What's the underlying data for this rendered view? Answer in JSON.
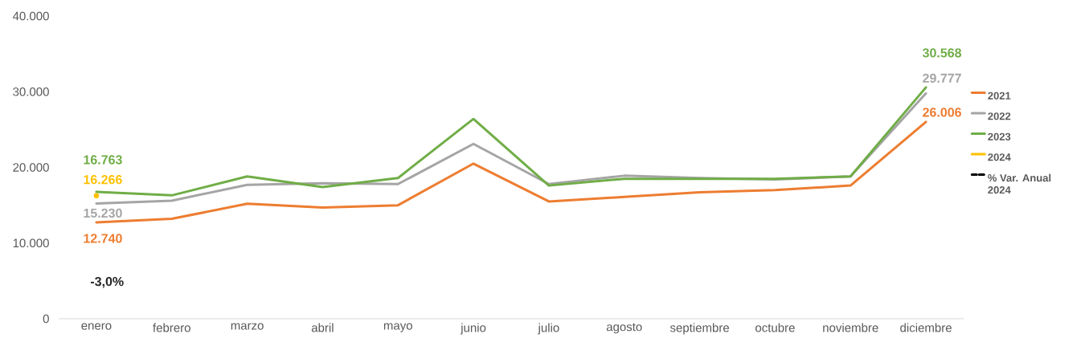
{
  "chart_data": {
    "type": "line",
    "categories": [
      "enero",
      "febrero",
      "marzo",
      "abril",
      "mayo",
      "junio",
      "julio",
      "agosto",
      "septiembre",
      "octubre",
      "noviembre",
      "diciembre"
    ],
    "series": [
      {
        "name": "2021",
        "color": "#ed7d31",
        "values": [
          12740,
          13200,
          15200,
          14700,
          15000,
          20500,
          15500,
          16100,
          16700,
          17000,
          17600,
          26006
        ],
        "value_labels": [
          "12.740",
          null,
          null,
          null,
          null,
          null,
          null,
          null,
          null,
          null,
          null,
          "26.006"
        ]
      },
      {
        "name": "2022",
        "color": "#a5a5a5",
        "values": [
          15230,
          15600,
          17700,
          17900,
          17800,
          23100,
          17800,
          18900,
          18600,
          18400,
          18800,
          29777
        ],
        "value_labels": [
          "15.230",
          null,
          null,
          null,
          null,
          null,
          null,
          null,
          null,
          null,
          null,
          "29.777"
        ]
      },
      {
        "name": "2023",
        "color": "#70ad47",
        "values": [
          16763,
          16300,
          18800,
          17400,
          18600,
          26400,
          17600,
          18500,
          18500,
          18500,
          18800,
          30568
        ],
        "value_labels": [
          "16.763",
          null,
          null,
          null,
          null,
          null,
          null,
          null,
          null,
          null,
          null,
          "30.568"
        ]
      },
      {
        "name": "2024",
        "color": "#ffc000",
        "marker": "circle",
        "values": [
          16266,
          null,
          null,
          null,
          null,
          null,
          null,
          null,
          null,
          null,
          null,
          null
        ],
        "value_labels": [
          "16.266",
          null,
          null,
          null,
          null,
          null,
          null,
          null,
          null,
          null,
          null,
          null
        ]
      },
      {
        "name": "% Var. Anual 2024",
        "color": "#000000",
        "line_style": "dashed",
        "values": [
          null,
          null,
          null,
          null,
          null,
          null,
          null,
          null,
          null,
          null,
          null,
          null
        ]
      }
    ],
    "annotations": [
      "-3,0%"
    ],
    "ylim": [
      0,
      40000
    ],
    "yticks": [
      {
        "value": 0,
        "label": "0"
      },
      {
        "value": 10000,
        "label": "10.000"
      },
      {
        "value": 20000,
        "label": "20.000"
      },
      {
        "value": 30000,
        "label": "30.000"
      },
      {
        "value": 40000,
        "label": "40.000"
      }
    ],
    "grid": false,
    "legend": "right",
    "marker": "none"
  }
}
